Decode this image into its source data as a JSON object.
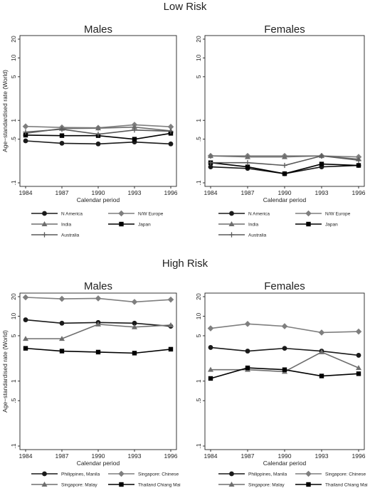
{
  "sections": [
    {
      "title": "Low Risk",
      "panels": [
        {
          "title": "Males",
          "chart_index": 0
        },
        {
          "title": "Females",
          "chart_index": 1
        }
      ],
      "legend": [
        "N America",
        "N/W Europe",
        "India",
        "Japan",
        "Australia"
      ]
    },
    {
      "title": "High Risk",
      "panels": [
        {
          "title": "Males",
          "chart_index": 2
        },
        {
          "title": "Females",
          "chart_index": 3
        }
      ],
      "legend": [
        "Philippines, Manila",
        "Singapore: Chinese",
        "Singapore: Malay",
        "Thailand  Chiang Mai"
      ]
    }
  ],
  "chart_data": [
    {
      "type": "line",
      "title": "Males",
      "xlabel": "Calendar period",
      "ylabel": "Age−standardised rate (World)",
      "yscale": "log",
      "ylim": [
        0.1,
        20
      ],
      "yticks": [
        0.1,
        0.5,
        1,
        5,
        10,
        20
      ],
      "ytick_labels": [
        ".1",
        ".5",
        "1",
        "5",
        "10",
        "20"
      ],
      "x": [
        "1984",
        "1987",
        "1990",
        "1993",
        "1996"
      ],
      "series": [
        {
          "name": "N America",
          "marker": "circle",
          "color": "#1a1a1a",
          "values": [
            0.47,
            0.43,
            0.42,
            0.45,
            0.42
          ]
        },
        {
          "name": "N/W Europe",
          "marker": "diamond",
          "color": "#7f7f7f",
          "values": [
            0.8,
            0.77,
            0.76,
            0.85,
            0.79
          ]
        },
        {
          "name": "India",
          "marker": "triangle",
          "color": "#6e6e6e",
          "values": [
            0.62,
            0.74,
            0.75,
            0.78,
            0.68
          ]
        },
        {
          "name": "Japan",
          "marker": "square",
          "color": "#000000",
          "values": [
            0.58,
            0.57,
            0.57,
            0.5,
            0.62
          ]
        },
        {
          "name": "Australia",
          "marker": "plus",
          "color": "#5a5a5a",
          "values": [
            0.65,
            0.72,
            0.6,
            0.7,
            0.67
          ]
        }
      ]
    },
    {
      "type": "line",
      "title": "Females",
      "xlabel": "Calendar period",
      "ylabel": "",
      "yscale": "log",
      "ylim": [
        0.1,
        20
      ],
      "yticks": [
        0.1,
        0.5,
        1,
        5,
        10,
        20
      ],
      "ytick_labels": [
        ".1",
        ".5",
        "1",
        "5",
        "10",
        "20"
      ],
      "x": [
        "1984",
        "1987",
        "1990",
        "1993",
        "1996"
      ],
      "series": [
        {
          "name": "N America",
          "marker": "circle",
          "color": "#1a1a1a",
          "values": [
            0.18,
            0.17,
            0.14,
            0.18,
            0.19
          ]
        },
        {
          "name": "N/W Europe",
          "marker": "diamond",
          "color": "#7f7f7f",
          "values": [
            0.27,
            0.27,
            0.27,
            0.27,
            0.26
          ]
        },
        {
          "name": "India",
          "marker": "triangle",
          "color": "#6e6e6e",
          "values": [
            0.27,
            0.26,
            0.26,
            0.27,
            0.24
          ]
        },
        {
          "name": "Japan",
          "marker": "square",
          "color": "#000000",
          "values": [
            0.21,
            0.18,
            0.14,
            0.2,
            0.19
          ]
        },
        {
          "name": "Australia",
          "marker": "plus",
          "color": "#5a5a5a",
          "values": [
            0.21,
            0.21,
            0.19,
            0.27,
            0.23
          ]
        }
      ]
    },
    {
      "type": "line",
      "title": "Males",
      "xlabel": "Calendar period",
      "ylabel": "Age−standardised rate (World)",
      "yscale": "log",
      "ylim": [
        0.1,
        20
      ],
      "yticks": [
        0.1,
        0.5,
        1,
        5,
        10,
        20
      ],
      "ytick_labels": [
        ".1",
        ".5",
        "1",
        "5",
        "10",
        "20"
      ],
      "x": [
        "1984",
        "1987",
        "1990",
        "1993",
        "1996"
      ],
      "series": [
        {
          "name": "Philippines, Manila",
          "marker": "circle",
          "color": "#1a1a1a",
          "values": [
            8.8,
            7.8,
            8.0,
            7.8,
            7.0
          ]
        },
        {
          "name": "Singapore: Chinese",
          "marker": "diamond",
          "color": "#7f7f7f",
          "values": [
            19.5,
            18.5,
            18.8,
            16.6,
            18.0
          ]
        },
        {
          "name": "Singapore: Malay",
          "marker": "triangle",
          "color": "#6e6e6e",
          "values": [
            4.5,
            4.5,
            7.5,
            6.8,
            7.3
          ]
        },
        {
          "name": "Thailand  Chiang Mai",
          "marker": "square",
          "color": "#000000",
          "values": [
            3.2,
            2.9,
            2.8,
            2.7,
            3.1
          ]
        }
      ]
    },
    {
      "type": "line",
      "title": "Females",
      "xlabel": "Calendar period",
      "ylabel": "",
      "yscale": "log",
      "ylim": [
        0.1,
        20
      ],
      "yticks": [
        0.1,
        0.5,
        1,
        5,
        10,
        20
      ],
      "ytick_labels": [
        ".1",
        ".5",
        "1",
        "5",
        "10",
        "20"
      ],
      "x": [
        "1984",
        "1987",
        "1990",
        "1993",
        "1996"
      ],
      "series": [
        {
          "name": "Philippines, Manila",
          "marker": "circle",
          "color": "#1a1a1a",
          "values": [
            3.3,
            2.9,
            3.2,
            2.9,
            2.5
          ]
        },
        {
          "name": "Singapore: Chinese",
          "marker": "diamond",
          "color": "#7f7f7f",
          "values": [
            6.5,
            7.6,
            7.0,
            5.6,
            5.8
          ]
        },
        {
          "name": "Singapore: Malay",
          "marker": "triangle",
          "color": "#6e6e6e",
          "values": [
            1.5,
            1.5,
            1.4,
            2.8,
            1.6
          ]
        },
        {
          "name": "Thailand  Chiang Mai",
          "marker": "square",
          "color": "#000000",
          "values": [
            1.1,
            1.6,
            1.5,
            1.2,
            1.3
          ]
        }
      ]
    }
  ]
}
